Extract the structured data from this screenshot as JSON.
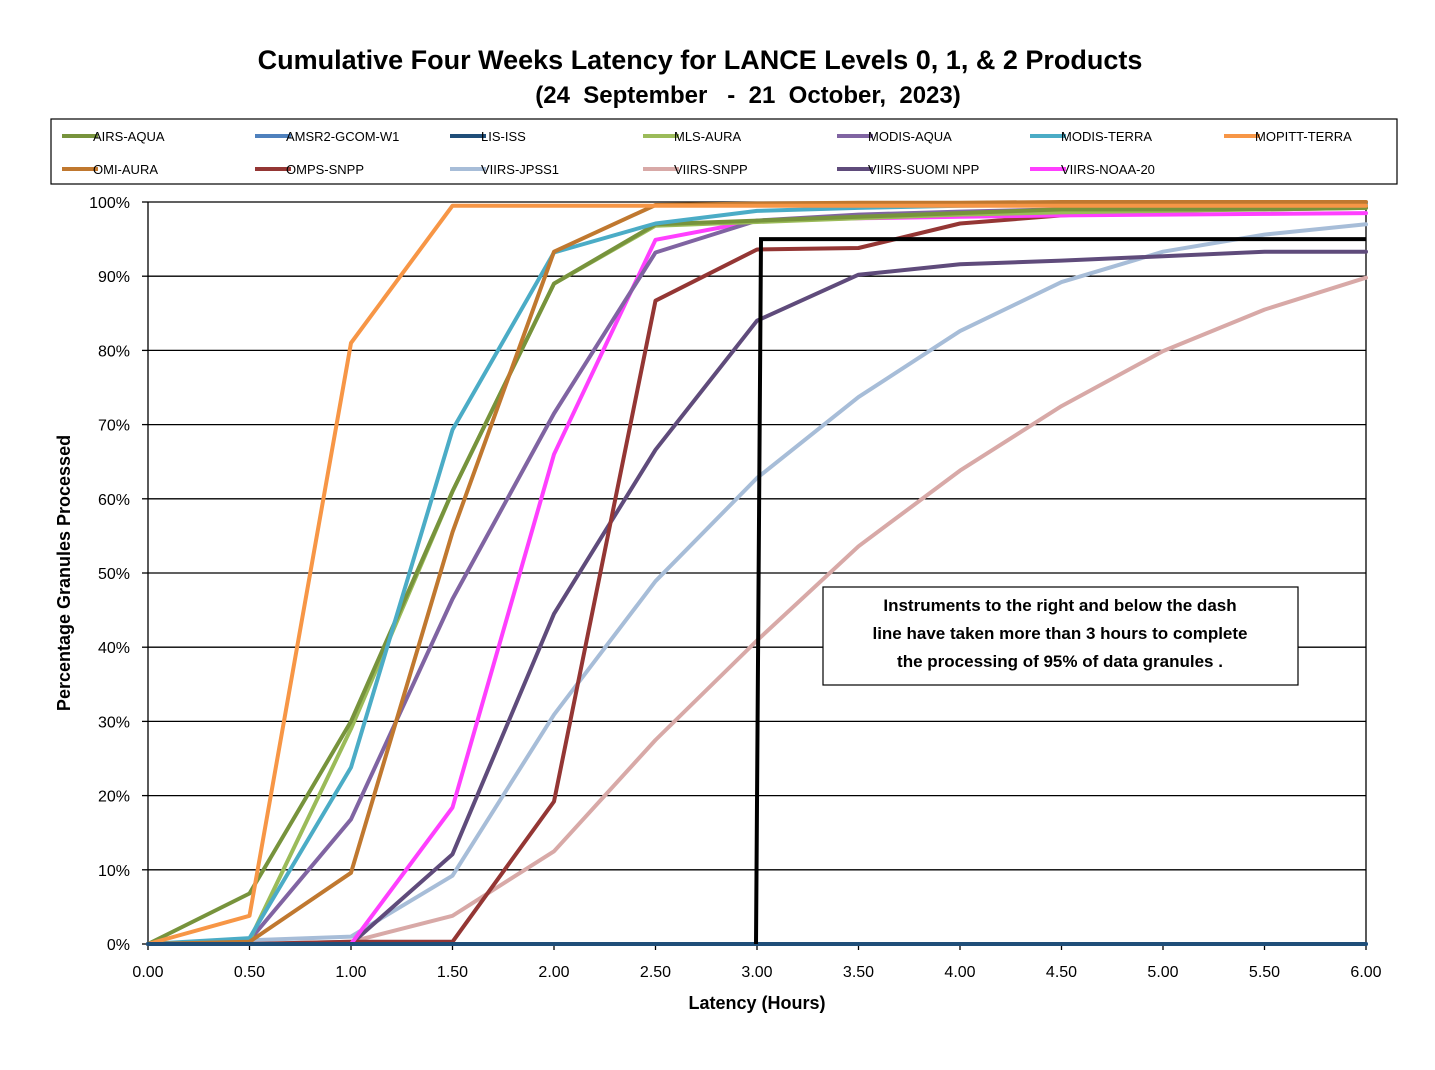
{
  "chart_data": {
    "type": "line",
    "title": "Cumulative Four Weeks Latency  for LANCE Levels 0, 1, & 2 Products",
    "subtitle": "(24  September   -  21  October,  2023)",
    "xlabel": "Latency (Hours)",
    "ylabel": "Percentage Granules Processed",
    "x": [
      0,
      0.5,
      1.0,
      1.5,
      2.0,
      2.5,
      3.0,
      3.5,
      4.0,
      4.5,
      5.0,
      5.5,
      6.0
    ],
    "x_tick_labels": [
      "0.00",
      "0.50",
      "1.00",
      "1.50",
      "2.00",
      "2.50",
      "3.00",
      "3.50",
      "4.00",
      "4.50",
      "5.00",
      "5.50",
      "6.00"
    ],
    "y_tick_labels": [
      "0%",
      "10%",
      "20%",
      "30%",
      "40%",
      "50%",
      "60%",
      "70%",
      "80%",
      "90%",
      "100%"
    ],
    "xlim": [
      0,
      6
    ],
    "ylim": [
      0,
      100
    ],
    "grid": "horizontal",
    "legend_position": "top",
    "series": [
      {
        "name": "AIRS-AQUA",
        "color": "#77933C",
        "values": [
          0,
          6.8,
          30,
          61,
          89,
          97,
          97.5,
          98,
          98.5,
          99,
          99,
          99,
          99.2
        ]
      },
      {
        "name": "AMSR2-GCOM-W1",
        "color": "#4F81BD",
        "values": [
          0,
          0,
          0,
          0,
          0,
          0,
          0,
          0,
          0,
          0,
          0,
          0,
          0
        ]
      },
      {
        "name": "LIS-ISS",
        "color": "#1F4E79",
        "values": [
          0,
          0,
          0,
          0,
          0,
          0,
          0,
          0,
          0,
          0,
          0,
          0,
          0
        ]
      },
      {
        "name": "MLS-AURA",
        "color": "#9BBB59",
        "values": [
          0,
          0.5,
          29,
          61,
          89,
          96.8,
          97.3,
          97.8,
          98.3,
          98.6,
          98.8,
          99,
          99.2
        ]
      },
      {
        "name": "MODIS-AQUA",
        "color": "#8064A2",
        "values": [
          0,
          0.5,
          16.8,
          46.5,
          71.5,
          93.2,
          97.5,
          98.3,
          98.7,
          99,
          99.2,
          99.3,
          99.5
        ]
      },
      {
        "name": "MODIS-TERRA",
        "color": "#4BACC6",
        "values": [
          0,
          0.8,
          23.8,
          69.3,
          93.2,
          97.1,
          98.8,
          99.2,
          99.5,
          99.6,
          99.7,
          99.8,
          99.8
        ]
      },
      {
        "name": "MOPITT-TERRA",
        "color": "#F79646",
        "values": [
          0,
          3.8,
          81,
          99.5,
          99.5,
          99.5,
          99.5,
          99.5,
          99.5,
          99.5,
          99.5,
          99.5,
          99.5
        ]
      },
      {
        "name": "OMI-AURA",
        "color": "#C0782F",
        "values": [
          0,
          0.3,
          9.6,
          55.5,
          93.3,
          99.6,
          99.8,
          99.9,
          99.9,
          100,
          100,
          100,
          100
        ]
      },
      {
        "name": "OMPS-SNPP",
        "color": "#943634",
        "values": [
          0,
          0,
          0.3,
          0.3,
          19.2,
          86.7,
          93.6,
          93.8,
          97.1,
          98.2,
          98.8,
          99.1,
          99.3
        ]
      },
      {
        "name": "VIIRS-JPSS1",
        "color": "#A7BDD8",
        "values": [
          0,
          0.5,
          1,
          9.2,
          30.9,
          48.9,
          62.8,
          73.7,
          82.6,
          89.2,
          93.3,
          95.6,
          97
        ]
      },
      {
        "name": "VIIRS-SNPP",
        "color": "#D8A9A7",
        "values": [
          0,
          0,
          0.3,
          3.8,
          12.5,
          27.5,
          40.9,
          53.6,
          63.8,
          72.5,
          79.9,
          85.5,
          89.8
        ]
      },
      {
        "name": "VIIRS-SUOMI NPP",
        "color": "#5F4B7B",
        "values": [
          0,
          0,
          0,
          12.1,
          44.5,
          66.6,
          84,
          90.2,
          91.6,
          92.1,
          92.7,
          93.3,
          93.3
        ]
      },
      {
        "name": "VIIRS-NOAA-20",
        "color": "#FF3FFF",
        "values": [
          0,
          0,
          0,
          18.4,
          66,
          94.9,
          97.5,
          97.8,
          98,
          98.2,
          98.3,
          98.4,
          98.5
        ]
      }
    ],
    "threshold_line": {
      "x": 3.0,
      "y": 95,
      "color": "#000000"
    },
    "annotation": {
      "lines": [
        "Instruments to the right and below the dash",
        "line have taken more than 3 hours to complete",
        "the processing of 95% of data granules ."
      ]
    }
  }
}
